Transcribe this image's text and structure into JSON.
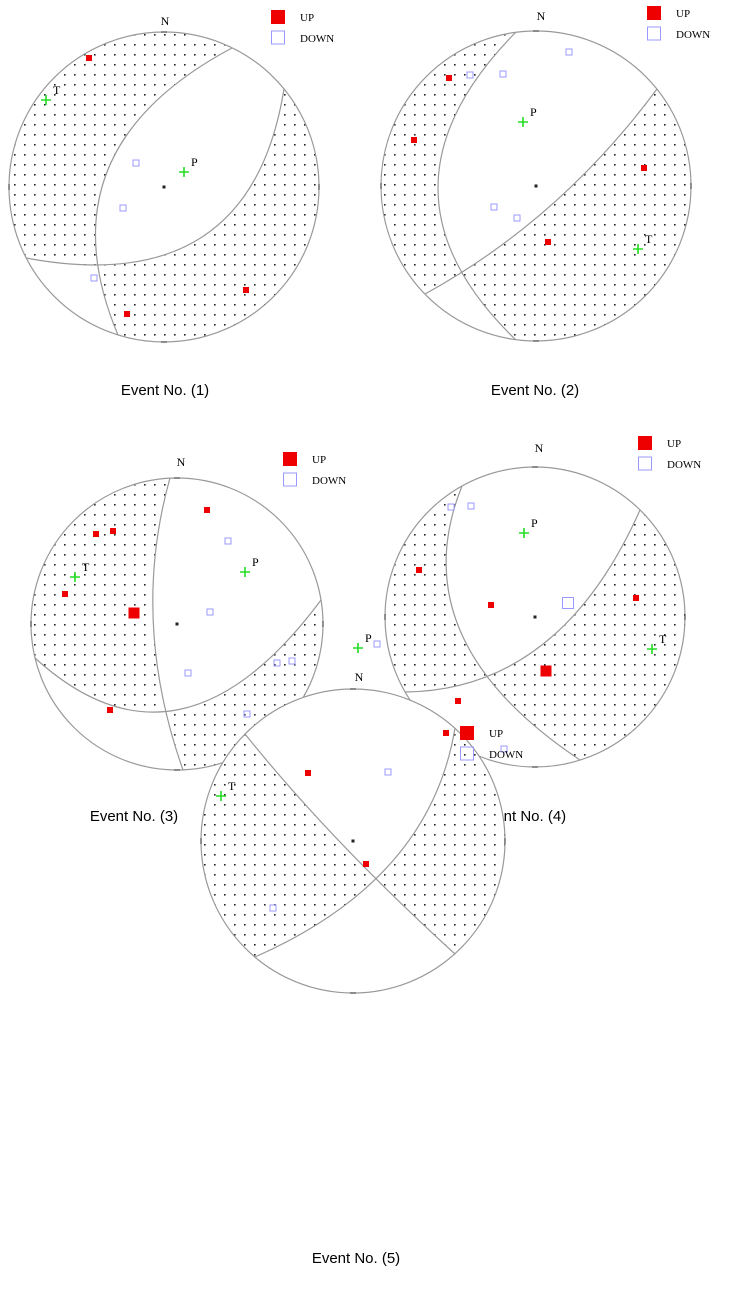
{
  "events": [
    {
      "caption": "Event No. (1)",
      "north": "N",
      "p": "P",
      "t": "T",
      "legend": {
        "up": "UP",
        "down": "DOWN"
      }
    },
    {
      "caption": "Event No. (2)",
      "north": "N",
      "p": "P",
      "t": "T",
      "legend": {
        "up": "UP",
        "down": "DOWN"
      }
    },
    {
      "caption": "Event No. (3)",
      "north": "N",
      "p": "P",
      "t": "T",
      "legend": {
        "up": "UP",
        "down": "DOWN"
      }
    },
    {
      "caption": "Event No. (4)",
      "north": "N",
      "p": "P",
      "t": "T",
      "legend": {
        "up": "UP",
        "down": "DOWN"
      }
    },
    {
      "caption": "Event No. (5)",
      "north": "N",
      "p": "P",
      "t": "T",
      "legend": {
        "up": "UP",
        "down": "DOWN"
      }
    }
  ]
}
